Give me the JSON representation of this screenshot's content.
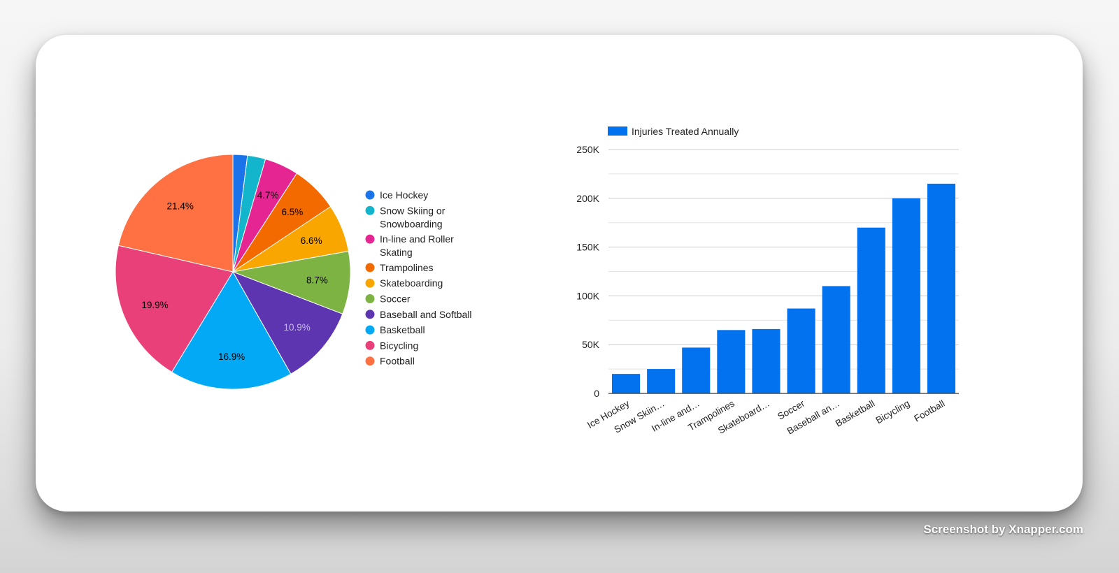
{
  "watermark": "Screenshot by Xnapper.com",
  "chart_data": [
    {
      "type": "pie",
      "categories": [
        "Ice Hockey",
        "Snow Skiing or Snowboarding",
        "In-line and Roller Skating",
        "Trampolines",
        "Skateboarding",
        "Soccer",
        "Baseball and Softball",
        "Basketball",
        "Bicycling",
        "Football"
      ],
      "values": [
        20000,
        25000,
        47000,
        65000,
        66000,
        87000,
        110000,
        170000,
        200000,
        215000
      ],
      "slice_labels": [
        "",
        "",
        "4.7%",
        "6.5%",
        "6.6%",
        "8.7%",
        "10.9%",
        "16.9%",
        "19.9%",
        "21.4%"
      ],
      "colors": [
        "#1a73e8",
        "#12b5cb",
        "#e52592",
        "#f26a00",
        "#f9a700",
        "#7cb342",
        "#5e35b1",
        "#03a9f4",
        "#ea4079",
        "#ff7043"
      ],
      "label_colors": [
        "#000000",
        "#000000",
        "#000000",
        "#000000",
        "#000000",
        "#000000",
        "#c5b8ea",
        "#000000",
        "#000000",
        "#000000"
      ],
      "legend": {
        "placement": "right",
        "entries": [
          "Ice Hockey",
          "Snow Skiing or Snowboarding",
          "In-line and Roller Skating",
          "Trampolines",
          "Skateboarding",
          "Soccer",
          "Baseball and Softball",
          "Basketball",
          "Bicycling",
          "Football"
        ]
      }
    },
    {
      "type": "bar",
      "categories": [
        "Ice Hockey",
        "Snow Skiing or Snowboarding",
        "In-line and Roller Skating",
        "Trampolines",
        "Skateboarding",
        "Soccer",
        "Baseball and Softball",
        "Basketball",
        "Bicycling",
        "Football"
      ],
      "tick_labels": [
        "Ice Hockey",
        "Snow Skiin…",
        "In-line and…",
        "Trampolines",
        "Skateboard…",
        "Soccer",
        "Baseball an…",
        "Basketball",
        "Bicycling",
        "Football"
      ],
      "series": [
        {
          "name": "Injuries Treated Annually",
          "values": [
            20000,
            25000,
            47000,
            65000,
            66000,
            87000,
            110000,
            170000,
            200000,
            215000
          ],
          "color": "#0372ee"
        }
      ],
      "ylim": [
        0,
        250000
      ],
      "y_ticks": [
        "0",
        "50K",
        "100K",
        "150K",
        "200K",
        "250K"
      ],
      "grid": true,
      "legend_placement": "top-left"
    }
  ]
}
